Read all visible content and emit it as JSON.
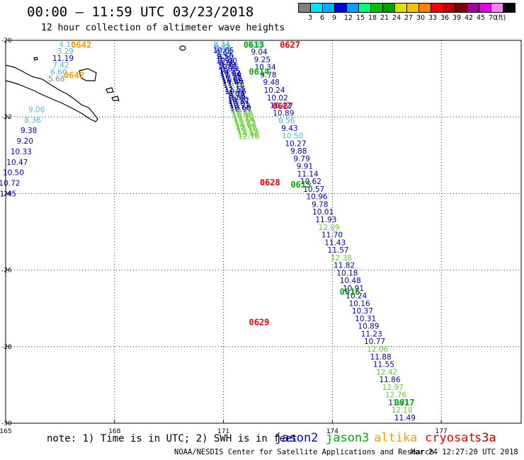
{
  "title": "00:00 – 11:59 UTC 03/23/2018",
  "subtitle": "12 hour collection of altimeter wave heights",
  "note": "note: 1) Time is in UTC; 2) SWH is in feet",
  "credit": "NOAA/NESDIS Center for Satellite Applications and Research",
  "timestamp": "Mar 24 12:27:20 UTC 2018",
  "satellites": [
    {
      "name": "jason2",
      "color": "#0000cc"
    },
    {
      "name": "jason3",
      "color": "#00aa00"
    },
    {
      "name": "altika",
      "color": "#ff9900"
    },
    {
      "name": "cryosat",
      "color": "#ee0000"
    },
    {
      "name": "s3a",
      "color": "#aa0000"
    }
  ],
  "colorbar": {
    "colors": [
      "#808080",
      "#00e0ff",
      "#00b0ff",
      "#0000e0",
      "#00a0ff",
      "#00ff80",
      "#00c000",
      "#00a000",
      "#e0e000",
      "#ffc000",
      "#ff8000",
      "#ff0000",
      "#c00000",
      "#800000",
      "#a000a0",
      "#e000e0",
      "#ff80ff",
      "#000000"
    ],
    "labels": [
      "3",
      "6",
      "9",
      "12",
      "15",
      "18",
      "21",
      "24",
      "27",
      "30",
      "33",
      "36",
      "39",
      "42",
      "45",
      "70"
    ],
    "unit": "(ft)"
  },
  "axes": {
    "lon_labels": [
      "165",
      "168",
      "171",
      "174",
      "177"
    ],
    "lat_labels": [
      "-20",
      "-22",
      "-24",
      "-26",
      "-28",
      "-30"
    ]
  },
  "pass_times": [
    {
      "text": "0642",
      "color": "#ff9900",
      "lon": 166.8,
      "lat": -20.1
    },
    {
      "text": "0642",
      "color": "#ff9900",
      "lon": 166.6,
      "lat": -20.9
    },
    {
      "text": "0613",
      "color": "#00aa00",
      "lon": 171.55,
      "lat": -20.1
    },
    {
      "text": "0627",
      "color": "#ee0000",
      "lon": 172.55,
      "lat": -20.1
    },
    {
      "text": "0614",
      "color": "#00aa00",
      "lon": 171.7,
      "lat": -20.8
    },
    {
      "text": "0627",
      "color": "#ee0000",
      "lon": 172.35,
      "lat": -21.7
    },
    {
      "text": "0628",
      "color": "#ee0000",
      "lon": 172.0,
      "lat": -23.7
    },
    {
      "text": "0615",
      "color": "#00aa00",
      "lon": 172.85,
      "lat": -23.75
    },
    {
      "text": "0616",
      "color": "#00aa00",
      "lon": 174.2,
      "lat": -26.55
    },
    {
      "text": "0629",
      "color": "#ee0000",
      "lon": 171.7,
      "lat": -27.35
    },
    {
      "text": "0617",
      "color": "#00aa00",
      "lon": 175.7,
      "lat": -29.45
    }
  ],
  "tracks": [
    {
      "name": "altika",
      "color": "#4fb4e0",
      "lon0": 166.7,
      "lat0": -20.1,
      "lon1": 166.4,
      "lat1": -21.0,
      "values": [
        "4.10",
        "3.29",
        "11.19",
        "7.42",
        "6.60",
        "5.68"
      ],
      "colors": [
        "#4fb4e0",
        "#4fb4e0",
        "#0000aa",
        "#4fb4e0",
        "#4fb4e0",
        "#888888"
      ]
    },
    {
      "name": "west-track",
      "color": "#0000aa",
      "lon0": 165.85,
      "lat0": -21.8,
      "lon1": 165.0,
      "lat1": -24.0,
      "values": [
        "9.06",
        "8.36",
        "9.38",
        "9.20",
        "10.33",
        "10.47",
        "10.50",
        "10.72",
        "11.45"
      ],
      "colors": [
        "#4fb4e0",
        "#4fb4e0",
        "#0000aa",
        "#0000aa",
        "#0000aa",
        "#0000aa",
        "#0000aa",
        "#0000aa",
        "#0000aa"
      ]
    },
    {
      "name": "jason3-a",
      "color": "#0000aa",
      "lon0": 170.95,
      "lat0": -20.1,
      "lon1": 171.7,
      "lat1": -22.5,
      "values": [
        "8.24",
        "8.22",
        "8.48",
        "10.05",
        "9.64",
        "8.47",
        "9.50",
        "9.87",
        "10.40",
        "9.56",
        "9.93",
        "10.55",
        "9.83",
        "10.25",
        "10.22",
        "11.39",
        "10.25",
        "11.86",
        "10.66",
        "11.47",
        "11.78",
        "14.25",
        "11.55",
        "10.76",
        "9.89",
        "9.79",
        "9.89",
        "10.50",
        "10.57",
        "10.01",
        "10.72",
        "10.60",
        "10.97",
        "12.22",
        "12.32",
        "13.90",
        "13.24",
        "13.54",
        "13.93",
        "12.63",
        "13.06",
        "12.52",
        "13.19",
        "12.13",
        "13.48",
        "12.76"
      ],
      "colors": [
        "#4fb4e0",
        "#4fb4e0",
        "#4fb4e0",
        "#0000aa",
        "#0000aa",
        "#4fb4e0",
        "#0000aa",
        "#0000aa",
        "#0000aa",
        "#0000aa",
        "#0000aa",
        "#0000aa",
        "#0000aa",
        "#0000aa",
        "#0000aa",
        "#0000aa",
        "#0000aa",
        "#0000aa",
        "#0000aa",
        "#0000aa",
        "#0000aa",
        "#66cc33",
        "#0000aa",
        "#0000aa",
        "#0000aa",
        "#0000aa",
        "#0000aa",
        "#0000aa",
        "#0000aa",
        "#0000aa",
        "#0000aa",
        "#0000aa",
        "#0000aa",
        "#66cc33",
        "#66cc33",
        "#66cc33",
        "#66cc33",
        "#66cc33",
        "#66cc33",
        "#66cc33",
        "#66cc33",
        "#66cc33",
        "#66cc33",
        "#66cc33",
        "#66cc33",
        "#66cc33"
      ]
    },
    {
      "name": "jason2-a",
      "color": "#0000aa",
      "lon0": 171.9,
      "lat0": -20.1,
      "lon1": 176.0,
      "lat1": -29.85,
      "values": [
        "8.96",
        "9.04",
        "9.25",
        "10.34",
        "9.78",
        "9.48",
        "10.24",
        "10.02",
        "10.42",
        "10.89",
        "8.56",
        "9.43",
        "10.50",
        "10.27",
        "9.88",
        "9.79",
        "9.91",
        "11.14",
        "10.62",
        "10.57",
        "10.96",
        "9.78",
        "10.01",
        "11.93",
        "12.09",
        "11.70",
        "11.43",
        "11.57",
        "12.38",
        "11.82",
        "10.18",
        "10.48",
        "10.91",
        "10.24",
        "10.16",
        "10.37",
        "10.31",
        "10.89",
        "11.23",
        "10.77",
        "12.06",
        "11.88",
        "11.55",
        "12.42",
        "11.86",
        "12.97",
        "12.76",
        "11.71",
        "12.18",
        "11.49"
      ],
      "colors": [
        "#4fb4e0",
        "#0000aa",
        "#0000aa",
        "#0000aa",
        "#0000aa",
        "#0000aa",
        "#0000aa",
        "#0000aa",
        "#0000aa",
        "#0000aa",
        "#4fb4e0",
        "#0000aa",
        "#4fb4e0",
        "#0000aa",
        "#0000aa",
        "#0000aa",
        "#0000aa",
        "#0000aa",
        "#0000aa",
        "#0000aa",
        "#0000aa",
        "#0000aa",
        "#0000aa",
        "#0000aa",
        "#66cc33",
        "#0000aa",
        "#0000aa",
        "#0000aa",
        "#66cc33",
        "#0000aa",
        "#0000aa",
        "#0000aa",
        "#0000aa",
        "#0000aa",
        "#0000aa",
        "#0000aa",
        "#0000aa",
        "#0000aa",
        "#0000aa",
        "#0000aa",
        "#66cc33",
        "#0000aa",
        "#0000aa",
        "#66cc33",
        "#0000aa",
        "#66cc33",
        "#66cc33",
        "#0000aa",
        "#66cc33",
        "#0000aa"
      ]
    }
  ]
}
